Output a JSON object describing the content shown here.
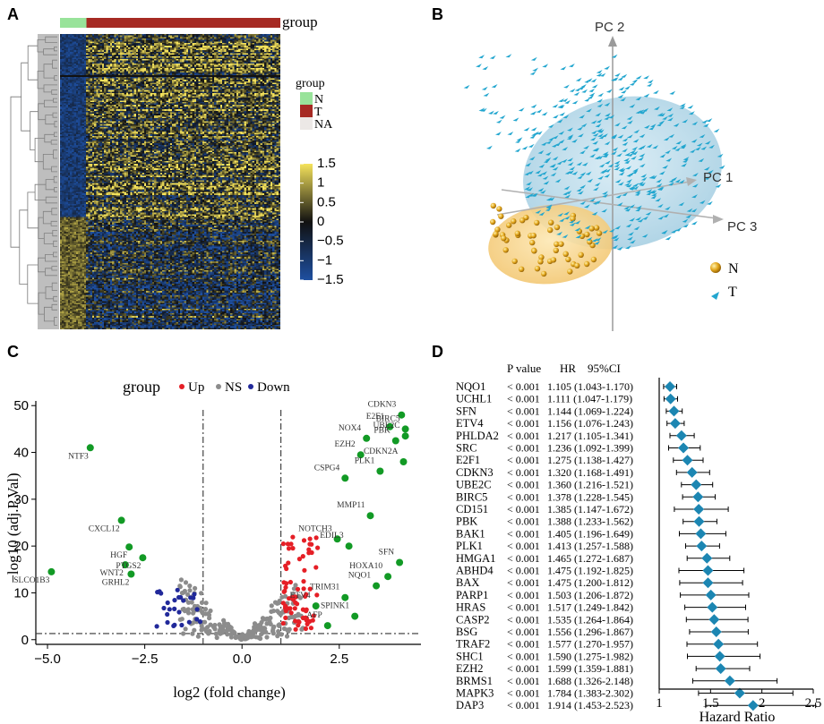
{
  "panel_labels": [
    "A",
    "B",
    "C",
    "D"
  ],
  "colors": {
    "normal": "#98e39a",
    "tumor": "#a62a23",
    "na": "#ece8e6",
    "heat_high": "#f5e35c",
    "heat_mid": "#111111",
    "heat_low": "#1e4fa0",
    "up": "#e51f26",
    "ns": "#8c8c8c",
    "down": "#21299a",
    "labeled": "#129a25",
    "pc_t": "#22a6cf",
    "pc_n": "#e2a51a",
    "forest": "#1c86b2"
  },
  "chart_data": [
    {
      "panel": "A",
      "type": "heatmap",
      "group_label": "group",
      "legend_title": "group",
      "legend_entries": [
        "N",
        "T",
        "NA"
      ],
      "colorbar_ticks": [
        "1.5",
        "1",
        "0.5",
        "0",
        "−0.5",
        "−1",
        "−1.5"
      ],
      "colorbar_values": [
        1.5,
        1,
        0.5,
        0,
        -0.5,
        -1,
        -1.5
      ],
      "column_groups": [
        {
          "group": "N",
          "count": 30
        },
        {
          "group": "T",
          "count": 220
        }
      ]
    },
    {
      "panel": "B",
      "type": "scatter",
      "axis_labels": [
        "PC 1",
        "PC 2",
        "PC 3"
      ],
      "legend": [
        {
          "name": "N",
          "marker": "sphere"
        },
        {
          "name": "T",
          "marker": "triangle"
        }
      ]
    },
    {
      "panel": "C",
      "type": "scatter",
      "legend_title": "group",
      "legend": [
        "Up",
        "NS",
        "Down"
      ],
      "xlabel": "log2 (fold change)",
      "ylabel": "−log10 (adj.P.Val)",
      "xlim": [
        -5.3,
        4.6
      ],
      "ylim": [
        -1,
        51
      ],
      "xticks": [
        -5.0,
        -2.5,
        0.0,
        2.5
      ],
      "xtick_labels": [
        "−5.0",
        "−2.5",
        "0.0",
        "2.5"
      ],
      "yticks": [
        0,
        10,
        20,
        30,
        40,
        50
      ],
      "vlines": [
        -1,
        1
      ],
      "hline": 1.3,
      "labeled_genes": [
        {
          "gene": "CDKN3",
          "x": 4.1,
          "y": 48.0
        },
        {
          "gene": "BIRC5",
          "x": 4.2,
          "y": 45.0
        },
        {
          "gene": "E2F1",
          "x": 3.8,
          "y": 45.5
        },
        {
          "gene": "NOX4",
          "x": 3.2,
          "y": 43.0
        },
        {
          "gene": "UBE2C",
          "x": 4.2,
          "y": 43.5
        },
        {
          "gene": "PBK",
          "x": 3.95,
          "y": 42.5
        },
        {
          "gene": "EZH2",
          "x": 3.05,
          "y": 39.5
        },
        {
          "gene": "CDKN2A",
          "x": 4.15,
          "y": 38.0
        },
        {
          "gene": "PLK1",
          "x": 3.55,
          "y": 36.0
        },
        {
          "gene": "CSPG4",
          "x": 2.65,
          "y": 34.5
        },
        {
          "gene": "NTF3",
          "x": -3.9,
          "y": 41.0
        },
        {
          "gene": "MMP11",
          "x": 3.3,
          "y": 26.5
        },
        {
          "gene": "CXCL12",
          "x": -3.1,
          "y": 25.5
        },
        {
          "gene": "NOTCH3",
          "x": 2.45,
          "y": 21.5
        },
        {
          "gene": "HGF",
          "x": -2.9,
          "y": 19.8
        },
        {
          "gene": "EDIL3",
          "x": 2.75,
          "y": 20.0
        },
        {
          "gene": "PTGS2",
          "x": -2.55,
          "y": 17.5
        },
        {
          "gene": "SFN",
          "x": 4.05,
          "y": 16.5
        },
        {
          "gene": "WNT2",
          "x": -3.0,
          "y": 16.0
        },
        {
          "gene": "SLCO1B3",
          "x": -4.9,
          "y": 14.5
        },
        {
          "gene": "GRHL2",
          "x": -2.85,
          "y": 14.0
        },
        {
          "gene": "HOXA10",
          "x": 3.75,
          "y": 13.5
        },
        {
          "gene": "NQO1",
          "x": 3.45,
          "y": 11.5
        },
        {
          "gene": "TRIM31",
          "x": 2.65,
          "y": 9.0
        },
        {
          "gene": "ETV4",
          "x": 1.9,
          "y": 7.2
        },
        {
          "gene": "SPINK1",
          "x": 2.9,
          "y": 5.0
        },
        {
          "gene": "AFP",
          "x": 2.2,
          "y": 3.0
        }
      ]
    },
    {
      "panel": "D",
      "type": "forest",
      "header": {
        "pvalue": "P value",
        "hr": "HR",
        "ci": "95%CI"
      },
      "xlabel": "Hazard Ratio",
      "xticks": [
        1,
        1.5,
        2,
        2.5
      ],
      "rows": [
        {
          "gene": "NQO1",
          "p": "< 0.001",
          "hr": 1.105,
          "lo": 1.043,
          "hi": 1.17,
          "ci_text": "1.105 (1.043-1.170)"
        },
        {
          "gene": "UCHL1",
          "p": "< 0.001",
          "hr": 1.111,
          "lo": 1.047,
          "hi": 1.179,
          "ci_text": "1.111 (1.047-1.179)"
        },
        {
          "gene": "SFN",
          "p": "< 0.001",
          "hr": 1.144,
          "lo": 1.069,
          "hi": 1.224,
          "ci_text": "1.144 (1.069-1.224)"
        },
        {
          "gene": "ETV4",
          "p": "< 0.001",
          "hr": 1.156,
          "lo": 1.076,
          "hi": 1.243,
          "ci_text": "1.156 (1.076-1.243)"
        },
        {
          "gene": "PHLDA2",
          "p": "< 0.001",
          "hr": 1.217,
          "lo": 1.105,
          "hi": 1.341,
          "ci_text": "1.217 (1.105-1.341)"
        },
        {
          "gene": "SRC",
          "p": "< 0.001",
          "hr": 1.236,
          "lo": 1.092,
          "hi": 1.399,
          "ci_text": "1.236 (1.092-1.399)"
        },
        {
          "gene": "E2F1",
          "p": "< 0.001",
          "hr": 1.275,
          "lo": 1.138,
          "hi": 1.427,
          "ci_text": "1.275 (1.138-1.427)"
        },
        {
          "gene": "CDKN3",
          "p": "< 0.001",
          "hr": 1.32,
          "lo": 1.168,
          "hi": 1.491,
          "ci_text": "1.320 (1.168-1.491)"
        },
        {
          "gene": "UBE2C",
          "p": "< 0.001",
          "hr": 1.36,
          "lo": 1.216,
          "hi": 1.521,
          "ci_text": "1.360 (1.216-1.521)"
        },
        {
          "gene": "BIRC5",
          "p": "< 0.001",
          "hr": 1.378,
          "lo": 1.228,
          "hi": 1.545,
          "ci_text": "1.378 (1.228-1.545)"
        },
        {
          "gene": "CD151",
          "p": "< 0.001",
          "hr": 1.385,
          "lo": 1.147,
          "hi": 1.672,
          "ci_text": "1.385 (1.147-1.672)"
        },
        {
          "gene": "PBK",
          "p": "< 0.001",
          "hr": 1.388,
          "lo": 1.233,
          "hi": 1.562,
          "ci_text": "1.388 (1.233-1.562)"
        },
        {
          "gene": "BAK1",
          "p": "< 0.001",
          "hr": 1.405,
          "lo": 1.196,
          "hi": 1.649,
          "ci_text": "1.405 (1.196-1.649)"
        },
        {
          "gene": "PLK1",
          "p": "< 0.001",
          "hr": 1.413,
          "lo": 1.257,
          "hi": 1.588,
          "ci_text": "1.413 (1.257-1.588)"
        },
        {
          "gene": "HMGA1",
          "p": "< 0.001",
          "hr": 1.465,
          "lo": 1.272,
          "hi": 1.687,
          "ci_text": "1.465 (1.272-1.687)"
        },
        {
          "gene": "ABHD4",
          "p": "< 0.001",
          "hr": 1.475,
          "lo": 1.192,
          "hi": 1.825,
          "ci_text": "1.475 (1.192-1.825)"
        },
        {
          "gene": "BAX",
          "p": "< 0.001",
          "hr": 1.475,
          "lo": 1.2,
          "hi": 1.812,
          "ci_text": "1.475 (1.200-1.812)"
        },
        {
          "gene": "PARP1",
          "p": "< 0.001",
          "hr": 1.503,
          "lo": 1.206,
          "hi": 1.872,
          "ci_text": "1.503 (1.206-1.872)"
        },
        {
          "gene": "HRAS",
          "p": "< 0.001",
          "hr": 1.517,
          "lo": 1.249,
          "hi": 1.842,
          "ci_text": "1.517 (1.249-1.842)"
        },
        {
          "gene": "CASP2",
          "p": "< 0.001",
          "hr": 1.535,
          "lo": 1.264,
          "hi": 1.864,
          "ci_text": "1.535 (1.264-1.864)"
        },
        {
          "gene": "BSG",
          "p": "< 0.001",
          "hr": 1.556,
          "lo": 1.296,
          "hi": 1.867,
          "ci_text": "1.556 (1.296-1.867)"
        },
        {
          "gene": "TRAF2",
          "p": "< 0.001",
          "hr": 1.577,
          "lo": 1.27,
          "hi": 1.957,
          "ci_text": "1.577 (1.270-1.957)"
        },
        {
          "gene": "SHC1",
          "p": "< 0.001",
          "hr": 1.59,
          "lo": 1.275,
          "hi": 1.982,
          "ci_text": "1.590 (1.275-1.982)"
        },
        {
          "gene": "EZH2",
          "p": "< 0.001",
          "hr": 1.599,
          "lo": 1.359,
          "hi": 1.881,
          "ci_text": "1.599 (1.359-1.881)"
        },
        {
          "gene": "BRMS1",
          "p": "< 0.001",
          "hr": 1.688,
          "lo": 1.326,
          "hi": 2.148,
          "ci_text": "1.688 (1.326-2.148)"
        },
        {
          "gene": "MAPK3",
          "p": "< 0.001",
          "hr": 1.784,
          "lo": 1.383,
          "hi": 2.302,
          "ci_text": "1.784 (1.383-2.302)"
        },
        {
          "gene": "DAP3",
          "p": "< 0.001",
          "hr": 1.914,
          "lo": 1.453,
          "hi": 2.523,
          "ci_text": "1.914 (1.453-2.523)"
        }
      ]
    }
  ]
}
